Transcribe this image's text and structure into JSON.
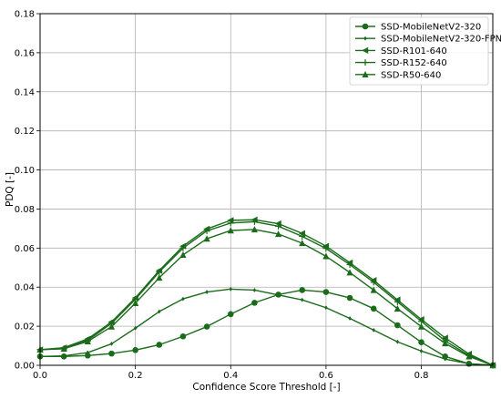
{
  "chart_data": {
    "type": "line",
    "xlabel": "Confidence Score Threshold [-]",
    "ylabel": "PDQ [-]",
    "xlim": [
      0,
      0.95
    ],
    "ylim": [
      0,
      0.18
    ],
    "grid": true,
    "legend_position": "top-right",
    "line_color": "#1a6b1a",
    "x_ticks": [
      {
        "v": 0.0,
        "label": "0.0"
      },
      {
        "v": 0.2,
        "label": "0.2"
      },
      {
        "v": 0.4,
        "label": "0.4"
      },
      {
        "v": 0.6,
        "label": "0.6"
      },
      {
        "v": 0.8,
        "label": "0.8"
      }
    ],
    "y_ticks": [
      {
        "v": 0.0,
        "label": "0.00"
      },
      {
        "v": 0.02,
        "label": "0.02"
      },
      {
        "v": 0.04,
        "label": "0.04"
      },
      {
        "v": 0.06,
        "label": "0.06"
      },
      {
        "v": 0.08,
        "label": "0.08"
      },
      {
        "v": 0.1,
        "label": "0.10"
      },
      {
        "v": 0.12,
        "label": "0.12"
      },
      {
        "v": 0.14,
        "label": "0.14"
      },
      {
        "v": 0.16,
        "label": "0.16"
      },
      {
        "v": 0.18,
        "label": "0.18"
      }
    ],
    "x": [
      0.0,
      0.05,
      0.1,
      0.15,
      0.2,
      0.25,
      0.3,
      0.35,
      0.4,
      0.45,
      0.5,
      0.55,
      0.6,
      0.65,
      0.7,
      0.75,
      0.8,
      0.85,
      0.9,
      0.95
    ],
    "series": [
      {
        "name": "SSD-MobileNetV2-320",
        "marker": "circle",
        "values": [
          0.0045,
          0.0045,
          0.005,
          0.006,
          0.0078,
          0.0105,
          0.0148,
          0.0198,
          0.0262,
          0.032,
          0.0362,
          0.0385,
          0.0375,
          0.0345,
          0.029,
          0.0205,
          0.0118,
          0.0045,
          0.0008,
          0.0
        ]
      },
      {
        "name": "SSD-MobileNetV2-320-FPN",
        "marker": "diamond",
        "values": [
          0.0045,
          0.0048,
          0.0065,
          0.011,
          0.019,
          0.0275,
          0.034,
          0.0375,
          0.039,
          0.0385,
          0.036,
          0.0335,
          0.0295,
          0.024,
          0.018,
          0.012,
          0.0073,
          0.0032,
          0.0008,
          0.0
        ]
      },
      {
        "name": "SSD-R101-640",
        "marker": "triangle-left",
        "values": [
          0.008,
          0.009,
          0.0135,
          0.0222,
          0.0345,
          0.0485,
          0.061,
          0.0698,
          0.0742,
          0.0745,
          0.0725,
          0.0675,
          0.061,
          0.0525,
          0.0435,
          0.0335,
          0.0235,
          0.014,
          0.0058,
          0.0
        ]
      },
      {
        "name": "SSD-R152-640",
        "marker": "plus",
        "values": [
          0.008,
          0.0085,
          0.0128,
          0.0215,
          0.0338,
          0.0478,
          0.06,
          0.0688,
          0.0728,
          0.0735,
          0.0712,
          0.066,
          0.0598,
          0.0515,
          0.0425,
          0.0325,
          0.0225,
          0.0125,
          0.005,
          0.0
        ]
      },
      {
        "name": "SSD-R50-640",
        "marker": "triangle-up",
        "values": [
          0.008,
          0.0085,
          0.0122,
          0.0198,
          0.0318,
          0.0448,
          0.0565,
          0.0648,
          0.069,
          0.0695,
          0.0672,
          0.0625,
          0.0558,
          0.0475,
          0.0385,
          0.029,
          0.0198,
          0.0112,
          0.0045,
          0.0
        ]
      }
    ]
  }
}
